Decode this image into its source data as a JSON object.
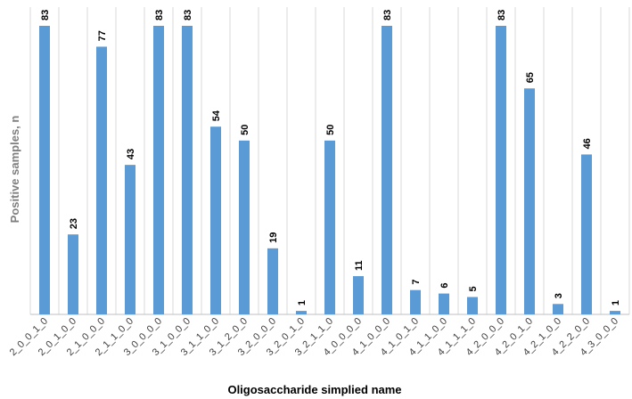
{
  "chart_data": {
    "type": "bar",
    "title": "",
    "xlabel": "Oligosaccharide simplied name",
    "ylabel": "Positive samples, n",
    "ylim": [
      0,
      85
    ],
    "grid": "vertical category separators",
    "legend": "none",
    "bar_color": "#5b9bd5",
    "categories": [
      "2_0_0_1_0",
      "2_0_1_0_0",
      "2_1_0_0_0",
      "2_1_1_0_0",
      "3_0_0_0_0",
      "3_1_0_0_0",
      "3_1_1_0_0",
      "3_1_2_0_0",
      "3_2_0_0_0",
      "3_2_0_1_0",
      "3_2_1_1_0",
      "4_0_0_0_0",
      "4_1_0_0_0",
      "4_1_0_1_0",
      "4_1_1_0_0",
      "4_1_1_1_0",
      "4_2_0_0_0",
      "4_2_0_1_0",
      "4_2_1_0_0",
      "4_2_2_0_0",
      "4_3_0_0_0"
    ],
    "values": [
      83,
      23,
      77,
      43,
      83,
      83,
      54,
      50,
      19,
      1,
      50,
      11,
      83,
      7,
      6,
      5,
      83,
      65,
      3,
      46,
      1
    ]
  }
}
